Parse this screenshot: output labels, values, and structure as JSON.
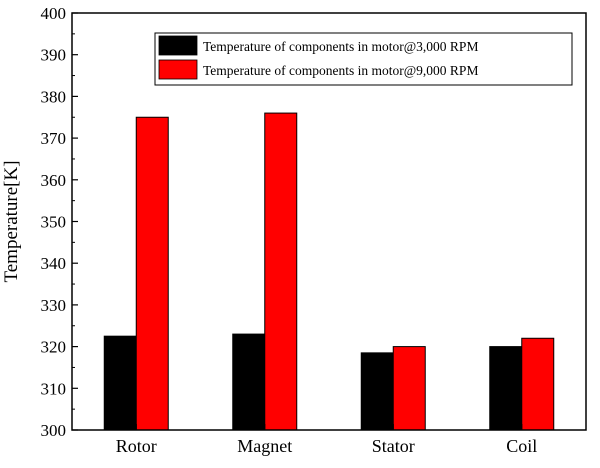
{
  "chart_data": {
    "type": "bar",
    "categories": [
      "Rotor",
      "Magnet",
      "Stator",
      "Coil"
    ],
    "series": [
      {
        "name": "Temperature of components in motor@3,000 RPM",
        "color": "#000000",
        "values": [
          322.5,
          323,
          318.5,
          320
        ]
      },
      {
        "name": "Temperature of components in motor@9,000 RPM",
        "color": "#ff0000",
        "values": [
          375,
          376,
          320,
          322
        ]
      }
    ],
    "title": "",
    "xlabel": "",
    "ylabel": "Temperature[K]",
    "ylim": [
      300,
      400
    ],
    "yticks": [
      300,
      310,
      320,
      330,
      340,
      350,
      360,
      370,
      380,
      390,
      400
    ],
    "grid": false,
    "legend_position": "top-right"
  }
}
